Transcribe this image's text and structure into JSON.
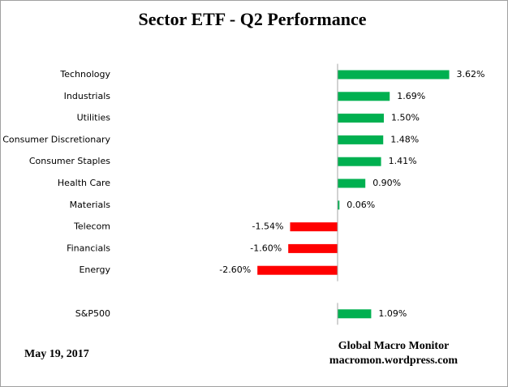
{
  "chart_data": {
    "type": "hbar",
    "title": "Sector ETF - Q2 Performance",
    "categories": [
      "Technology",
      "Industrials",
      "Utilities",
      "Consumer Discretionary",
      "Consumer Staples",
      "Health Care",
      "Materials",
      "Telecom",
      "Financials",
      "Energy",
      null,
      "S&P500"
    ],
    "values": [
      3.62,
      1.69,
      1.5,
      1.48,
      1.41,
      0.9,
      0.06,
      -1.54,
      -1.6,
      -2.6,
      null,
      1.09
    ],
    "value_labels": [
      "3.62%",
      "1.69%",
      "1.50%",
      "1.48%",
      "1.41%",
      "0.90%",
      "0.06%",
      "-1.54%",
      "-1.60%",
      "-2.60%",
      null,
      "1.09%"
    ],
    "colors": [
      "#00b050",
      "#00b050",
      "#00b050",
      "#00b050",
      "#00b050",
      "#00b050",
      "#00b050",
      "#ff0000",
      "#ff0000",
      "#ff0000",
      null,
      "#00b050"
    ],
    "date": "May 19,  2017",
    "source": "Global Macro Monitor",
    "source_url": "macromon.wordpress.com"
  }
}
